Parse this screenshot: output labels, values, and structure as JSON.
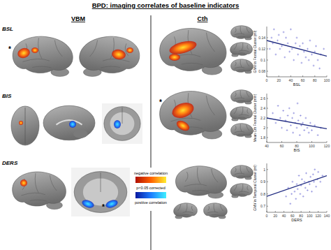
{
  "figure": {
    "title": "BPD: imaging correlates of baseline indicators",
    "headings": [
      "VBM",
      "Cth"
    ],
    "rows": [
      "BSL",
      "BIS",
      "DERS"
    ],
    "annotations": [
      "*",
      "*",
      "*"
    ],
    "legend": {
      "negative": "negative correlation",
      "significance": "p<0.05 corrected",
      "positive": "positive correlation"
    }
  },
  "chart_data": [
    {
      "type": "scatter",
      "x_label": "BSL",
      "y_label": "GMV in Frontal Cluster (ml)",
      "xlim": [
        0,
        100
      ],
      "ylim": [
        0.07,
        0.16
      ],
      "xticks": [
        0,
        20,
        40,
        60,
        80,
        100
      ],
      "yticks": [
        0.08,
        0.1,
        0.12,
        0.14
      ],
      "series": [
        {
          "type": "scatter",
          "marker": "plus",
          "color": "#7b7bd6",
          "x": [
            5,
            8,
            10,
            12,
            15,
            18,
            20,
            22,
            25,
            28,
            30,
            32,
            35,
            38,
            40,
            42,
            45,
            48,
            50,
            52,
            55,
            58,
            60,
            62,
            65,
            68,
            70,
            72,
            75,
            78,
            80,
            82,
            85,
            88,
            90,
            95
          ],
          "values": [
            0.12,
            0.14,
            0.13,
            0.155,
            0.11,
            0.135,
            0.145,
            0.12,
            0.125,
            0.15,
            0.105,
            0.14,
            0.13,
            0.115,
            0.155,
            0.12,
            0.1,
            0.13,
            0.14,
            0.11,
            0.125,
            0.095,
            0.13,
            0.115,
            0.105,
            0.12,
            0.1,
            0.135,
            0.11,
            0.09,
            0.115,
            0.125,
            0.1,
            0.085,
            0.11,
            0.12
          ]
        },
        {
          "type": "line",
          "color": "#1f2a80",
          "x": [
            0,
            100
          ],
          "values": [
            0.135,
            0.107
          ]
        }
      ]
    },
    {
      "type": "scatter",
      "x_label": "BIS",
      "y_label": "Mean Cth Frontal Cluster (mm)",
      "xlim": [
        40,
        120
      ],
      "ylim": [
        1.7,
        2.7
      ],
      "xticks": [
        40,
        60,
        80,
        100,
        120
      ],
      "yticks": [
        1.8,
        2,
        2.2,
        2.4,
        2.6
      ],
      "series": [
        {
          "type": "scatter",
          "marker": "plus",
          "color": "#7b7bd6",
          "x": [
            48,
            52,
            55,
            58,
            60,
            62,
            65,
            67,
            68,
            70,
            72,
            74,
            75,
            76,
            78,
            80,
            81,
            82,
            84,
            85,
            86,
            88,
            90,
            92,
            94,
            96,
            98,
            100,
            104,
            108,
            112
          ],
          "values": [
            2.3,
            2.1,
            2.45,
            2.2,
            2.0,
            2.35,
            2.15,
            1.95,
            2.25,
            2.4,
            2.05,
            2.2,
            1.9,
            2.3,
            2.1,
            2.0,
            2.5,
            2.15,
            1.85,
            2.25,
            2.05,
            2.1,
            1.95,
            2.2,
            2.0,
            1.9,
            2.1,
            1.95,
            2.05,
            1.85,
            2.0
          ]
        },
        {
          "type": "line",
          "color": "#1f2a80",
          "x": [
            40,
            120
          ],
          "values": [
            2.2,
            1.98
          ]
        }
      ]
    },
    {
      "type": "scatter",
      "x_label": "DERS",
      "y_label": "GMV in Temporal Cluster (ml)",
      "xlim": [
        0,
        140
      ],
      "ylim": [
        0.65,
        1.05
      ],
      "xticks": [
        0,
        20,
        40,
        60,
        80,
        100,
        120,
        140
      ],
      "yticks": [
        0.7,
        0.8,
        0.9,
        1
      ],
      "series": [
        {
          "type": "scatter",
          "marker": "plus",
          "color": "#7b7bd6",
          "x": [
            45,
            50,
            55,
            58,
            60,
            65,
            68,
            70,
            72,
            75,
            78,
            80,
            82,
            85,
            88,
            90,
            92,
            95,
            98,
            100,
            102,
            105,
            108,
            110,
            112,
            115,
            118,
            120,
            125,
            130
          ],
          "values": [
            0.78,
            0.85,
            0.72,
            0.8,
            0.9,
            0.82,
            0.76,
            0.88,
            0.84,
            0.95,
            0.8,
            0.87,
            0.92,
            0.78,
            0.9,
            0.85,
            0.97,
            0.83,
            0.9,
            0.88,
            0.94,
            0.82,
            0.96,
            0.9,
            1.0,
            0.86,
            0.92,
            0.98,
            0.9,
            0.95
          ]
        },
        {
          "type": "line",
          "color": "#1f2a80",
          "x": [
            0,
            140
          ],
          "values": [
            0.78,
            0.95
          ]
        }
      ]
    }
  ]
}
